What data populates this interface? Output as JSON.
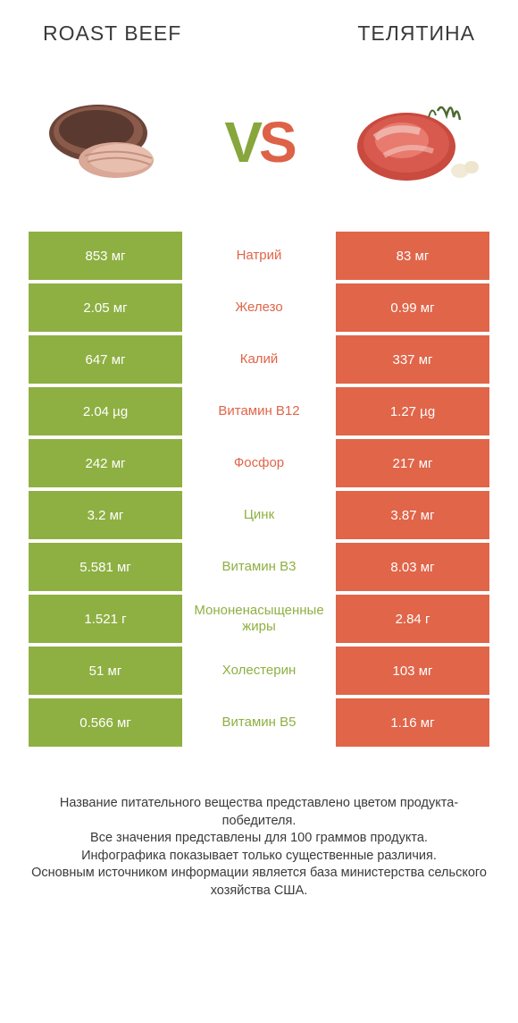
{
  "header": {
    "left": "ROAST BEEF",
    "right": "ТЕЛЯТИНА"
  },
  "vs": {
    "v": "V",
    "s": "S"
  },
  "colors": {
    "green": "#8eb042",
    "orange": "#e06549",
    "text": "#3a3a3a",
    "white": "#ffffff"
  },
  "rows": [
    {
      "left": "853 мг",
      "mid": "Натрий",
      "right": "83 мг",
      "winner": "left"
    },
    {
      "left": "2.05 мг",
      "mid": "Железо",
      "right": "0.99 мг",
      "winner": "left"
    },
    {
      "left": "647 мг",
      "mid": "Калий",
      "right": "337 мг",
      "winner": "left"
    },
    {
      "left": "2.04 µg",
      "mid": "Витамин B12",
      "right": "1.27 µg",
      "winner": "left"
    },
    {
      "left": "242 мг",
      "mid": "Фосфор",
      "right": "217 мг",
      "winner": "left"
    },
    {
      "left": "3.2 мг",
      "mid": "Цинк",
      "right": "3.87 мг",
      "winner": "right"
    },
    {
      "left": "5.581 мг",
      "mid": "Витамин B3",
      "right": "8.03 мг",
      "winner": "right"
    },
    {
      "left": "1.521 г",
      "mid": "Мононенасыщенные жиры",
      "right": "2.84 г",
      "winner": "right"
    },
    {
      "left": "51 мг",
      "mid": "Холестерин",
      "right": "103 мг",
      "winner": "right"
    },
    {
      "left": "0.566 мг",
      "mid": "Витамин B5",
      "right": "1.16 мг",
      "winner": "right"
    }
  ],
  "footer": {
    "line1": "Название питательного вещества представлено цветом продукта-победителя.",
    "line2": "Все значения представлены для 100 граммов продукта.",
    "line3": "Инфографика показывает только существенные различия.",
    "line4": "Основным источником информации является база министерства сельского хозяйства США."
  }
}
